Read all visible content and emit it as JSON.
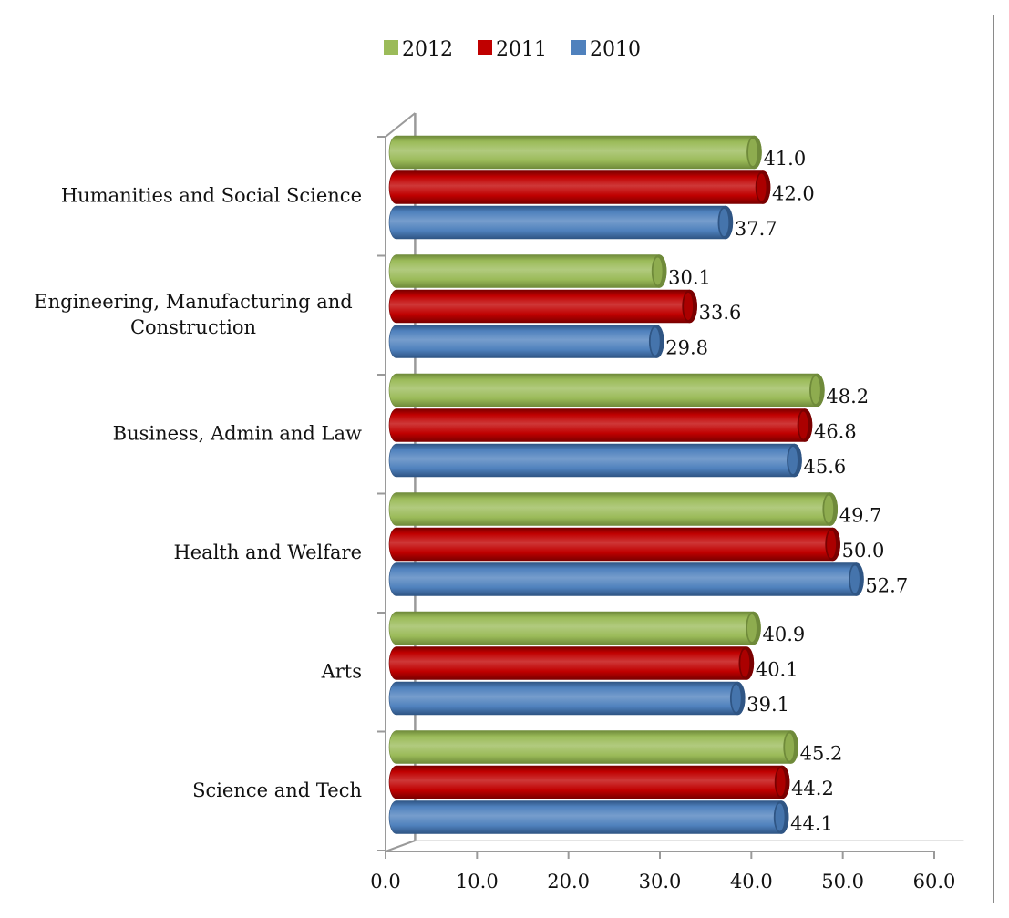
{
  "chart_data": {
    "type": "bar",
    "orientation": "horizontal",
    "style": "3d-cylinder",
    "categories": [
      "Humanities and Social Science",
      "Engineering, Manufacturing and Construction",
      "Business, Admin and Law",
      "Health and Welfare",
      "Arts",
      "Science and Tech"
    ],
    "category_lines": [
      [
        "Humanities and Social Science"
      ],
      [
        "Engineering, Manufacturing and",
        "Construction"
      ],
      [
        "Business, Admin and Law"
      ],
      [
        "Health and Welfare"
      ],
      [
        "Arts"
      ],
      [
        "Science and Tech"
      ]
    ],
    "series": [
      {
        "name": "2012",
        "color": "#9bbb59",
        "dark": "#6f8a3a",
        "values": [
          41.0,
          30.1,
          48.2,
          49.7,
          40.9,
          45.2
        ]
      },
      {
        "name": "2011",
        "color": "#c00000",
        "dark": "#7a0000",
        "values": [
          42.0,
          33.6,
          46.8,
          50.0,
          40.1,
          44.2
        ]
      },
      {
        "name": "2010",
        "color": "#4f81bd",
        "dark": "#2f5584",
        "values": [
          37.7,
          29.8,
          45.6,
          52.7,
          39.1,
          44.1
        ]
      }
    ],
    "xlim": [
      0,
      60
    ],
    "xticks": [
      "0.0",
      "10.0",
      "20.0",
      "30.0",
      "40.0",
      "50.0",
      "60.0"
    ],
    "legend": {
      "position": "top",
      "entries": [
        "2012",
        "2011",
        "2010"
      ]
    },
    "grid": false,
    "title": "",
    "xlabel": "",
    "ylabel": ""
  }
}
